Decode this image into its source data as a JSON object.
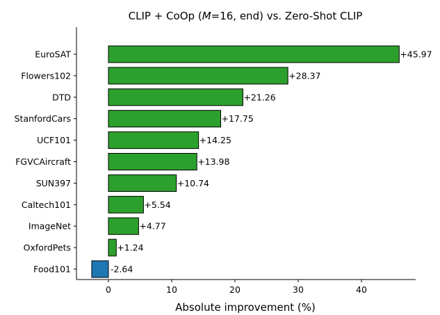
{
  "chart_data": {
    "type": "bar",
    "orientation": "horizontal",
    "title": "CLIP + CoOp (M=16, end) vs. Zero-Shot CLIP",
    "title_parts": [
      "CLIP + CoOp (",
      "M",
      "=16, end) vs. Zero-Shot CLIP"
    ],
    "xlabel": "Absolute improvement (%)",
    "ylabel": "",
    "categories": [
      "EuroSAT",
      "Flowers102",
      "DTD",
      "StanfordCars",
      "UCF101",
      "FGVCAircraft",
      "SUN397",
      "Caltech101",
      "ImageNet",
      "OxfordPets",
      "Food101"
    ],
    "values": [
      45.97,
      28.37,
      21.26,
      17.75,
      14.25,
      13.98,
      10.74,
      5.54,
      4.77,
      1.24,
      -2.64
    ],
    "data_labels": [
      "+45.97",
      "+28.37",
      "+21.26",
      "+17.75",
      "+14.25",
      "+13.98",
      "+10.74",
      "+5.54",
      "+4.77",
      "+1.24",
      "-2.64"
    ],
    "xticks": [
      0,
      10,
      20,
      30,
      40
    ],
    "xlim": [
      -5,
      48.5
    ],
    "colors": {
      "positive": "#2ca02c",
      "negative": "#1f77b4",
      "edge": "#000000"
    },
    "grid": false,
    "legend": "none"
  }
}
